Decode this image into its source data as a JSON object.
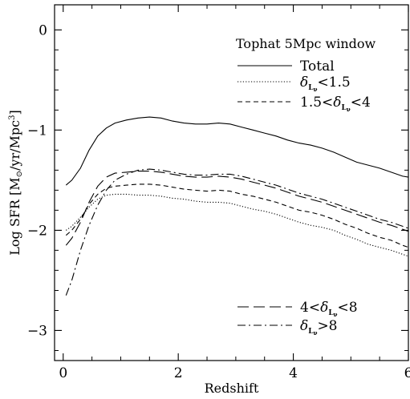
{
  "chart_data": {
    "type": "line",
    "title": "",
    "xlabel": "Redshift",
    "ylabel_parts": {
      "pre": "Log SFR [M",
      "sun": "⊙",
      "mid": "/yr/Mpc",
      "sup": "3",
      "post": "]"
    },
    "xlim": [
      -0.15,
      6.0
    ],
    "ylim": [
      -3.3,
      0.25
    ],
    "x_ticks": [
      0,
      2,
      4,
      6
    ],
    "x_tick_labels": [
      "0",
      "2",
      "4",
      "6"
    ],
    "y_ticks": [
      0,
      -1,
      -2,
      -3
    ],
    "y_tick_labels": [
      "0",
      "−1",
      "−2",
      "−3"
    ],
    "legend_title": "Tophat 5Mpc window",
    "series": [
      {
        "name": "Total",
        "style": "solid",
        "x": [
          0.05,
          0.15,
          0.3,
          0.45,
          0.6,
          0.75,
          0.9,
          1.1,
          1.3,
          1.5,
          1.7,
          1.9,
          2.1,
          2.3,
          2.5,
          2.7,
          2.9,
          3.1,
          3.3,
          3.5,
          3.7,
          3.9,
          4.1,
          4.3,
          4.5,
          4.7,
          4.9,
          5.1,
          5.3,
          5.5,
          5.7,
          5.9,
          6.0
        ],
        "y": [
          -1.55,
          -1.5,
          -1.38,
          -1.2,
          -1.06,
          -0.98,
          -0.93,
          -0.9,
          -0.88,
          -0.87,
          -0.88,
          -0.91,
          -0.93,
          -0.94,
          -0.94,
          -0.93,
          -0.94,
          -0.97,
          -1.0,
          -1.03,
          -1.06,
          -1.1,
          -1.13,
          -1.15,
          -1.18,
          -1.22,
          -1.27,
          -1.32,
          -1.35,
          -1.38,
          -1.42,
          -1.46,
          -1.47
        ]
      },
      {
        "name_parts": {
          "pre": "",
          "delta": "δ",
          "sub": "L",
          "subsub": "ν",
          "post": "<1.5"
        },
        "style": "dotted",
        "x": [
          0.05,
          0.15,
          0.3,
          0.45,
          0.6,
          0.75,
          0.9,
          1.1,
          1.3,
          1.5,
          1.7,
          1.9,
          2.1,
          2.3,
          2.5,
          2.7,
          2.9,
          3.1,
          3.3,
          3.5,
          3.7,
          3.9,
          4.1,
          4.3,
          4.5,
          4.7,
          4.9,
          5.1,
          5.3,
          5.5,
          5.7,
          5.9,
          6.0
        ],
        "y": [
          -2.0,
          -1.96,
          -1.87,
          -1.77,
          -1.69,
          -1.65,
          -1.64,
          -1.64,
          -1.65,
          -1.65,
          -1.66,
          -1.68,
          -1.69,
          -1.71,
          -1.72,
          -1.72,
          -1.73,
          -1.76,
          -1.79,
          -1.81,
          -1.84,
          -1.88,
          -1.92,
          -1.95,
          -1.97,
          -2.0,
          -2.05,
          -2.09,
          -2.14,
          -2.17,
          -2.2,
          -2.24,
          -2.26
        ]
      },
      {
        "name_parts": {
          "pre": "1.5<",
          "delta": "δ",
          "sub": "L",
          "subsub": "ν",
          "post": "<4"
        },
        "style": "dashed",
        "x": [
          0.05,
          0.15,
          0.3,
          0.45,
          0.6,
          0.75,
          0.9,
          1.1,
          1.3,
          1.5,
          1.7,
          1.9,
          2.1,
          2.3,
          2.5,
          2.7,
          2.9,
          3.1,
          3.3,
          3.5,
          3.7,
          3.9,
          4.1,
          4.3,
          4.5,
          4.7,
          4.9,
          5.1,
          5.3,
          5.5,
          5.7,
          5.9,
          6.0
        ],
        "y": [
          -2.05,
          -2.0,
          -1.89,
          -1.74,
          -1.64,
          -1.58,
          -1.56,
          -1.55,
          -1.54,
          -1.54,
          -1.55,
          -1.57,
          -1.59,
          -1.6,
          -1.61,
          -1.6,
          -1.61,
          -1.64,
          -1.66,
          -1.69,
          -1.72,
          -1.76,
          -1.8,
          -1.82,
          -1.85,
          -1.89,
          -1.94,
          -1.98,
          -2.03,
          -2.07,
          -2.1,
          -2.15,
          -2.17
        ]
      },
      {
        "name_parts": {
          "pre": "4<",
          "delta": "δ",
          "sub": "L",
          "subsub": "ν",
          "post": "<8"
        },
        "style": "longdash",
        "x": [
          0.05,
          0.15,
          0.3,
          0.45,
          0.6,
          0.75,
          0.9,
          1.1,
          1.3,
          1.5,
          1.7,
          1.9,
          2.1,
          2.3,
          2.5,
          2.7,
          2.9,
          3.1,
          3.3,
          3.5,
          3.7,
          3.9,
          4.1,
          4.3,
          4.5,
          4.7,
          4.9,
          5.1,
          5.3,
          5.5,
          5.7,
          5.9,
          6.0
        ],
        "y": [
          -2.15,
          -2.08,
          -1.92,
          -1.72,
          -1.56,
          -1.47,
          -1.43,
          -1.42,
          -1.41,
          -1.41,
          -1.42,
          -1.44,
          -1.46,
          -1.47,
          -1.47,
          -1.46,
          -1.47,
          -1.49,
          -1.52,
          -1.55,
          -1.58,
          -1.62,
          -1.66,
          -1.69,
          -1.72,
          -1.76,
          -1.8,
          -1.84,
          -1.88,
          -1.92,
          -1.95,
          -1.99,
          -2.01
        ]
      },
      {
        "name_parts": {
          "pre": "",
          "delta": "δ",
          "sub": "L",
          "subsub": "ν",
          "post": ">8"
        },
        "style": "dashdot",
        "x": [
          0.05,
          0.15,
          0.3,
          0.45,
          0.6,
          0.75,
          0.9,
          1.1,
          1.3,
          1.5,
          1.7,
          1.9,
          2.1,
          2.3,
          2.5,
          2.7,
          2.9,
          3.1,
          3.3,
          3.5,
          3.7,
          3.9,
          4.1,
          4.3,
          4.5,
          4.7,
          4.9,
          5.1,
          5.3,
          5.5,
          5.7,
          5.9,
          6.0
        ],
        "y": [
          -2.65,
          -2.5,
          -2.2,
          -1.95,
          -1.75,
          -1.6,
          -1.5,
          -1.44,
          -1.4,
          -1.39,
          -1.4,
          -1.42,
          -1.44,
          -1.45,
          -1.45,
          -1.44,
          -1.44,
          -1.46,
          -1.49,
          -1.52,
          -1.55,
          -1.59,
          -1.63,
          -1.66,
          -1.69,
          -1.73,
          -1.77,
          -1.81,
          -1.85,
          -1.89,
          -1.92,
          -1.96,
          -1.98
        ]
      }
    ],
    "legend_placement": [
      "top-right",
      "top-right",
      "top-right",
      "bottom-right",
      "bottom-right"
    ],
    "grid": false,
    "colors": {
      "line": "#000000",
      "background": "#ffffff"
    }
  }
}
